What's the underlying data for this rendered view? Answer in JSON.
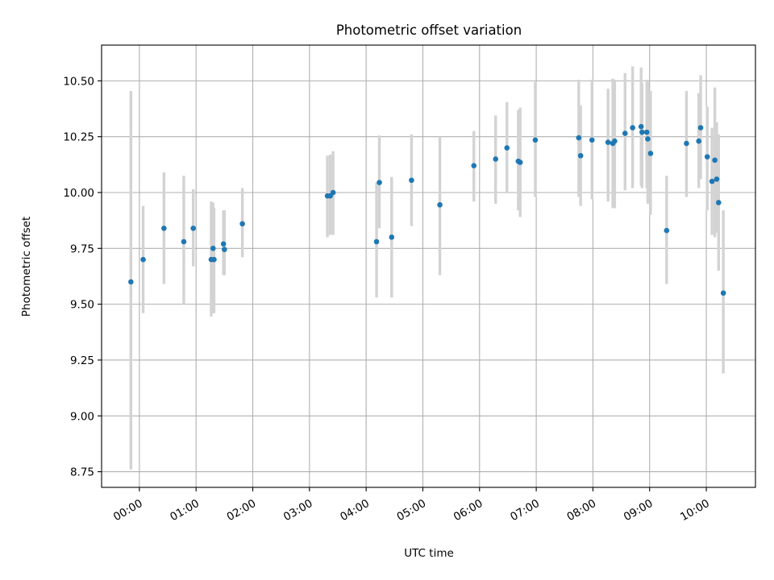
{
  "chart_data": {
    "type": "scatter",
    "title": "Photometric offset variation",
    "xlabel": "UTC time",
    "ylabel": "Photometric offset",
    "xlim": [
      "-00:40",
      "10:52"
    ],
    "ylim": [
      8.68,
      10.66
    ],
    "grid": true,
    "x_ticks": [
      "00:00",
      "01:00",
      "02:00",
      "03:00",
      "04:00",
      "05:00",
      "06:00",
      "07:00",
      "08:00",
      "09:00",
      "10:00"
    ],
    "y_ticks": [
      "8.75",
      "9.00",
      "9.25",
      "9.50",
      "9.75",
      "10.00",
      "10.25",
      "10.50"
    ],
    "point_color": "#1f77b4",
    "errorbar_color": "#d3d3d3",
    "series": [
      {
        "time": [
          "-00:09",
          "00:04",
          "00:26",
          "00:47",
          "00:57",
          "01:16",
          "01:18",
          "01:19",
          "01:29",
          "01:30",
          "01:49",
          "03:19",
          "03:22",
          "03:25",
          "04:11",
          "04:14",
          "04:27",
          "04:48",
          "05:18",
          "05:54",
          "06:17",
          "06:29",
          "06:41",
          "06:43",
          "06:59",
          "07:45",
          "07:47",
          "07:59",
          "08:16",
          "08:21",
          "08:23",
          "08:34",
          "08:42",
          "08:51",
          "08:52",
          "08:57",
          "08:58",
          "09:01",
          "09:18",
          "09:39",
          "09:52",
          "09:54",
          "10:01",
          "10:06",
          "10:09",
          "10:11",
          "10:13",
          "10:18"
        ],
        "y": [
          9.6,
          9.7,
          9.84,
          9.78,
          9.84,
          9.7,
          9.75,
          9.7,
          9.77,
          9.745,
          9.86,
          9.985,
          9.985,
          10.0,
          9.78,
          10.045,
          9.8,
          10.055,
          9.945,
          10.12,
          10.15,
          10.2,
          10.14,
          10.135,
          10.235,
          10.245,
          10.165,
          10.235,
          10.225,
          10.22,
          10.23,
          10.265,
          10.29,
          10.295,
          10.27,
          10.27,
          10.24,
          10.175,
          9.83,
          10.22,
          10.23,
          10.29,
          10.16,
          10.05,
          10.145,
          10.06,
          9.955,
          9.55
        ],
        "y_low": [
          8.76,
          9.46,
          9.59,
          9.5,
          9.67,
          9.445,
          9.46,
          9.46,
          9.63,
          9.63,
          9.71,
          9.8,
          9.81,
          9.81,
          9.53,
          9.84,
          9.53,
          9.85,
          9.63,
          9.96,
          9.95,
          10.0,
          9.92,
          9.89,
          9.98,
          9.98,
          9.94,
          9.97,
          9.96,
          9.93,
          9.93,
          10.01,
          10.02,
          10.03,
          10.02,
          10.02,
          9.95,
          9.9,
          9.59,
          9.98,
          10.02,
          10.06,
          9.92,
          9.81,
          9.8,
          9.82,
          9.65,
          9.19
        ],
        "y_high": [
          10.455,
          9.94,
          10.09,
          10.075,
          10.015,
          9.96,
          9.955,
          9.93,
          9.92,
          9.92,
          10.02,
          10.165,
          10.17,
          10.185,
          10.045,
          10.255,
          10.07,
          10.26,
          10.25,
          10.275,
          10.345,
          10.405,
          10.37,
          10.38,
          10.495,
          10.505,
          10.39,
          10.505,
          10.465,
          10.51,
          10.505,
          10.535,
          10.565,
          10.56,
          10.49,
          10.505,
          10.505,
          10.455,
          10.075,
          10.455,
          10.445,
          10.525,
          10.385,
          10.29,
          10.47,
          10.315,
          10.26,
          9.92
        ]
      }
    ]
  }
}
